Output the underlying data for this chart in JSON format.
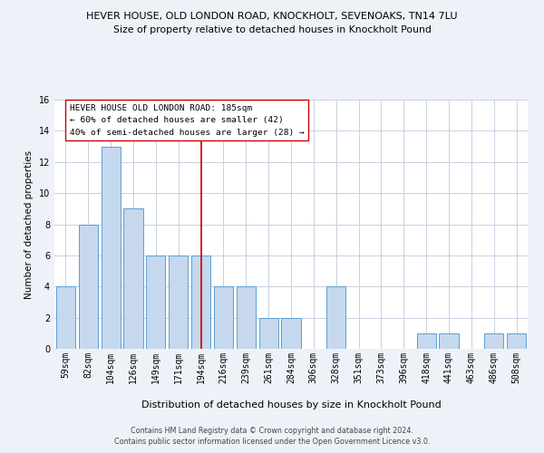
{
  "title1": "HEVER HOUSE, OLD LONDON ROAD, KNOCKHOLT, SEVENOAKS, TN14 7LU",
  "title2": "Size of property relative to detached houses in Knockholt Pound",
  "xlabel": "Distribution of detached houses by size in Knockholt Pound",
  "ylabel": "Number of detached properties",
  "categories": [
    "59sqm",
    "82sqm",
    "104sqm",
    "126sqm",
    "149sqm",
    "171sqm",
    "194sqm",
    "216sqm",
    "239sqm",
    "261sqm",
    "284sqm",
    "306sqm",
    "328sqm",
    "351sqm",
    "373sqm",
    "396sqm",
    "418sqm",
    "441sqm",
    "463sqm",
    "486sqm",
    "508sqm"
  ],
  "values": [
    4,
    8,
    13,
    9,
    6,
    6,
    6,
    4,
    4,
    2,
    2,
    0,
    4,
    0,
    0,
    0,
    1,
    1,
    0,
    1,
    1
  ],
  "bar_color": "#c5d8ed",
  "bar_edge_color": "#5a9fd4",
  "vline_x": 6,
  "vline_color": "#cc0000",
  "annotation_title": "HEVER HOUSE OLD LONDON ROAD: 185sqm",
  "annotation_line1": "← 60% of detached houses are smaller (42)",
  "annotation_line2": "40% of semi-detached houses are larger (28) →",
  "ylim": [
    0,
    16
  ],
  "yticks": [
    0,
    2,
    4,
    6,
    8,
    10,
    12,
    14,
    16
  ],
  "footer1": "Contains HM Land Registry data © Crown copyright and database right 2024.",
  "footer2": "Contains public sector information licensed under the Open Government Licence v3.0.",
  "bg_color": "#eef2f8",
  "plot_bg_color": "#ffffff",
  "grid_color": "#c8d0e0",
  "title1_fontsize": 8.0,
  "title2_fontsize": 7.8,
  "xlabel_fontsize": 8.0,
  "ylabel_fontsize": 7.5,
  "tick_fontsize": 7.0,
  "annotation_fontsize": 6.8,
  "footer_fontsize": 5.8
}
